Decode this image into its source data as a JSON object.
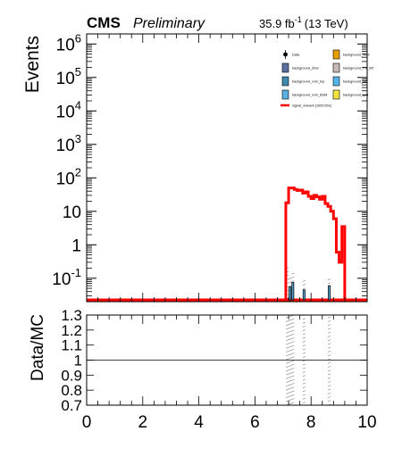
{
  "header": {
    "experiment": "CMS",
    "status": "Preliminary",
    "lumi": "35.9 fb",
    "lumi_exp": "-1",
    "energy": "(13 TeV)"
  },
  "legend": {
    "entries": [
      {
        "label": "Data",
        "marker": "point",
        "color": "#000000"
      },
      {
        "label": "background_SMs",
        "marker": "box",
        "color": "#e69f00"
      },
      {
        "label": "background_Zlvlv",
        "marker": "box",
        "color": "#5b6f9e"
      },
      {
        "label": "background_VV_Wt",
        "marker": "box",
        "color": "#c9b8b8"
      },
      {
        "label": "background_vvm_top",
        "marker": "box",
        "color": "#3f8ab0"
      },
      {
        "label": "background_Wtt",
        "marker": "box",
        "color": "#56b4e9"
      },
      {
        "label": "background_vvm_BSM",
        "marker": "box",
        "color": "#5aaee0"
      },
      {
        "label": "background_qcd",
        "marker": "box",
        "color": "#f0e442"
      },
      {
        "label": "signal_vHeavh [1000,50x]",
        "marker": "line",
        "color": "#ff0000"
      }
    ]
  },
  "chart_data": [
    {
      "type": "histogram",
      "panel": "main",
      "ylabel": "Events",
      "yscale": "log",
      "ylim": [
        0.02,
        2000000
      ],
      "xlim": [
        0,
        10
      ],
      "y_ticks": [
        {
          "v": 0.1,
          "m": "10",
          "e": "-1"
        },
        {
          "v": 1,
          "m": "1",
          "e": ""
        },
        {
          "v": 10,
          "m": "10",
          "e": ""
        },
        {
          "v": 100,
          "m": "10",
          "e": "2"
        },
        {
          "v": 1000,
          "m": "10",
          "e": "3"
        },
        {
          "v": 10000,
          "m": "10",
          "e": "4"
        },
        {
          "v": 100000,
          "m": "10",
          "e": "5"
        },
        {
          "v": 1000000,
          "m": "10",
          "e": "6"
        }
      ],
      "signal": {
        "name": "signal_vHeavh [1000,50x]",
        "color": "#ff0000",
        "bin_edges": [
          7.1,
          7.2,
          7.3,
          7.4,
          7.5,
          7.6,
          7.7,
          7.8,
          7.9,
          8.0,
          8.1,
          8.2,
          8.3,
          8.4,
          8.5,
          8.6,
          8.7,
          8.8,
          8.9,
          9.0,
          9.1,
          9.2
        ],
        "values": [
          18,
          50,
          50,
          45,
          42,
          43,
          35,
          38,
          28,
          24,
          30,
          27,
          23,
          28,
          17,
          14,
          10,
          6,
          0.6,
          0.3,
          3.5
        ]
      },
      "background": {
        "color": "#56b4e9",
        "bins": [
          {
            "x0": 7.2,
            "x1": 7.3,
            "y": 0.055
          },
          {
            "x0": 7.3,
            "x1": 7.4,
            "y": 0.075
          },
          {
            "x0": 7.7,
            "x1": 7.8,
            "y": 0.045
          },
          {
            "x0": 8.6,
            "x1": 8.7,
            "y": 0.06
          }
        ]
      },
      "uncertainty_bins": [
        {
          "x0": 7.1,
          "x1": 7.2,
          "lo": 0.02,
          "hi": 0.22
        },
        {
          "x0": 7.2,
          "x1": 7.3,
          "lo": 0.02,
          "hi": 0.12
        },
        {
          "x0": 7.3,
          "x1": 7.4,
          "lo": 0.02,
          "hi": 0.15
        },
        {
          "x0": 7.7,
          "x1": 7.8,
          "lo": 0.02,
          "hi": 0.09
        },
        {
          "x0": 8.6,
          "x1": 8.7,
          "lo": 0.02,
          "hi": 0.11
        }
      ],
      "baseline_color": "#ff0000"
    },
    {
      "type": "ratio",
      "panel": "ratio",
      "ylabel": "Data/MC",
      "ylim": [
        0.7,
        1.3
      ],
      "y_ticks": [
        "0.7",
        "0.8",
        "0.9",
        "1",
        "1.1",
        "1.2",
        "1.3"
      ],
      "xlim": [
        0,
        10
      ],
      "x_ticks": [
        "0",
        "2",
        "4",
        "6",
        "8",
        "10"
      ],
      "reference_line": 1.0,
      "uncertainty_bins": [
        {
          "x0": 7.1,
          "x1": 7.4
        },
        {
          "x0": 7.7,
          "x1": 7.8
        },
        {
          "x0": 8.6,
          "x1": 8.7
        }
      ]
    }
  ]
}
